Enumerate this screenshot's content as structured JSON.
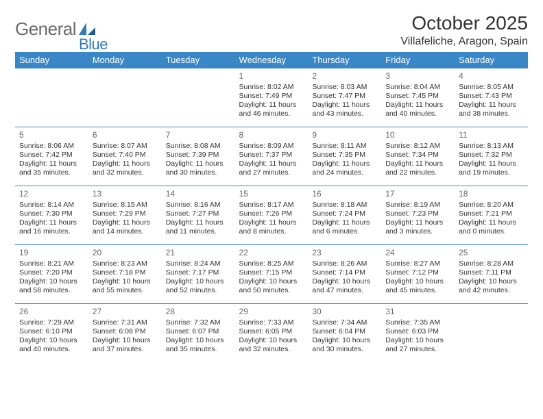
{
  "brand": {
    "name_gray": "General",
    "name_blue": "Blue"
  },
  "header": {
    "month_title": "October 2025",
    "location": "Villafeliche, Aragon, Spain"
  },
  "style": {
    "header_bg": "#3a87c7",
    "header_fg": "#ffffff",
    "row_border": "#3a87c7",
    "logo_gray": "#6a6a6a",
    "logo_blue": "#2f7bbf",
    "text_color": "#333333",
    "daynum_color": "#666666",
    "page_bg": "#ffffff"
  },
  "calendar": {
    "day_headers": [
      "Sunday",
      "Monday",
      "Tuesday",
      "Wednesday",
      "Thursday",
      "Friday",
      "Saturday"
    ],
    "weeks": [
      [
        null,
        null,
        null,
        {
          "n": "1",
          "sunrise": "8:02 AM",
          "sunset": "7:49 PM",
          "daylight": "11 hours and 46 minutes."
        },
        {
          "n": "2",
          "sunrise": "8:03 AM",
          "sunset": "7:47 PM",
          "daylight": "11 hours and 43 minutes."
        },
        {
          "n": "3",
          "sunrise": "8:04 AM",
          "sunset": "7:45 PM",
          "daylight": "11 hours and 40 minutes."
        },
        {
          "n": "4",
          "sunrise": "8:05 AM",
          "sunset": "7:43 PM",
          "daylight": "11 hours and 38 minutes."
        }
      ],
      [
        {
          "n": "5",
          "sunrise": "8:06 AM",
          "sunset": "7:42 PM",
          "daylight": "11 hours and 35 minutes."
        },
        {
          "n": "6",
          "sunrise": "8:07 AM",
          "sunset": "7:40 PM",
          "daylight": "11 hours and 32 minutes."
        },
        {
          "n": "7",
          "sunrise": "8:08 AM",
          "sunset": "7:39 PM",
          "daylight": "11 hours and 30 minutes."
        },
        {
          "n": "8",
          "sunrise": "8:09 AM",
          "sunset": "7:37 PM",
          "daylight": "11 hours and 27 minutes."
        },
        {
          "n": "9",
          "sunrise": "8:11 AM",
          "sunset": "7:35 PM",
          "daylight": "11 hours and 24 minutes."
        },
        {
          "n": "10",
          "sunrise": "8:12 AM",
          "sunset": "7:34 PM",
          "daylight": "11 hours and 22 minutes."
        },
        {
          "n": "11",
          "sunrise": "8:13 AM",
          "sunset": "7:32 PM",
          "daylight": "11 hours and 19 minutes."
        }
      ],
      [
        {
          "n": "12",
          "sunrise": "8:14 AM",
          "sunset": "7:30 PM",
          "daylight": "11 hours and 16 minutes."
        },
        {
          "n": "13",
          "sunrise": "8:15 AM",
          "sunset": "7:29 PM",
          "daylight": "11 hours and 14 minutes."
        },
        {
          "n": "14",
          "sunrise": "8:16 AM",
          "sunset": "7:27 PM",
          "daylight": "11 hours and 11 minutes."
        },
        {
          "n": "15",
          "sunrise": "8:17 AM",
          "sunset": "7:26 PM",
          "daylight": "11 hours and 8 minutes."
        },
        {
          "n": "16",
          "sunrise": "8:18 AM",
          "sunset": "7:24 PM",
          "daylight": "11 hours and 6 minutes."
        },
        {
          "n": "17",
          "sunrise": "8:19 AM",
          "sunset": "7:23 PM",
          "daylight": "11 hours and 3 minutes."
        },
        {
          "n": "18",
          "sunrise": "8:20 AM",
          "sunset": "7:21 PM",
          "daylight": "11 hours and 0 minutes."
        }
      ],
      [
        {
          "n": "19",
          "sunrise": "8:21 AM",
          "sunset": "7:20 PM",
          "daylight": "10 hours and 58 minutes."
        },
        {
          "n": "20",
          "sunrise": "8:23 AM",
          "sunset": "7:18 PM",
          "daylight": "10 hours and 55 minutes."
        },
        {
          "n": "21",
          "sunrise": "8:24 AM",
          "sunset": "7:17 PM",
          "daylight": "10 hours and 52 minutes."
        },
        {
          "n": "22",
          "sunrise": "8:25 AM",
          "sunset": "7:15 PM",
          "daylight": "10 hours and 50 minutes."
        },
        {
          "n": "23",
          "sunrise": "8:26 AM",
          "sunset": "7:14 PM",
          "daylight": "10 hours and 47 minutes."
        },
        {
          "n": "24",
          "sunrise": "8:27 AM",
          "sunset": "7:12 PM",
          "daylight": "10 hours and 45 minutes."
        },
        {
          "n": "25",
          "sunrise": "8:28 AM",
          "sunset": "7:11 PM",
          "daylight": "10 hours and 42 minutes."
        }
      ],
      [
        {
          "n": "26",
          "sunrise": "7:29 AM",
          "sunset": "6:10 PM",
          "daylight": "10 hours and 40 minutes."
        },
        {
          "n": "27",
          "sunrise": "7:31 AM",
          "sunset": "6:08 PM",
          "daylight": "10 hours and 37 minutes."
        },
        {
          "n": "28",
          "sunrise": "7:32 AM",
          "sunset": "6:07 PM",
          "daylight": "10 hours and 35 minutes."
        },
        {
          "n": "29",
          "sunrise": "7:33 AM",
          "sunset": "6:05 PM",
          "daylight": "10 hours and 32 minutes."
        },
        {
          "n": "30",
          "sunrise": "7:34 AM",
          "sunset": "6:04 PM",
          "daylight": "10 hours and 30 minutes."
        },
        {
          "n": "31",
          "sunrise": "7:35 AM",
          "sunset": "6:03 PM",
          "daylight": "10 hours and 27 minutes."
        },
        null
      ]
    ],
    "labels": {
      "sunrise": "Sunrise:",
      "sunset": "Sunset:",
      "daylight": "Daylight:"
    }
  }
}
